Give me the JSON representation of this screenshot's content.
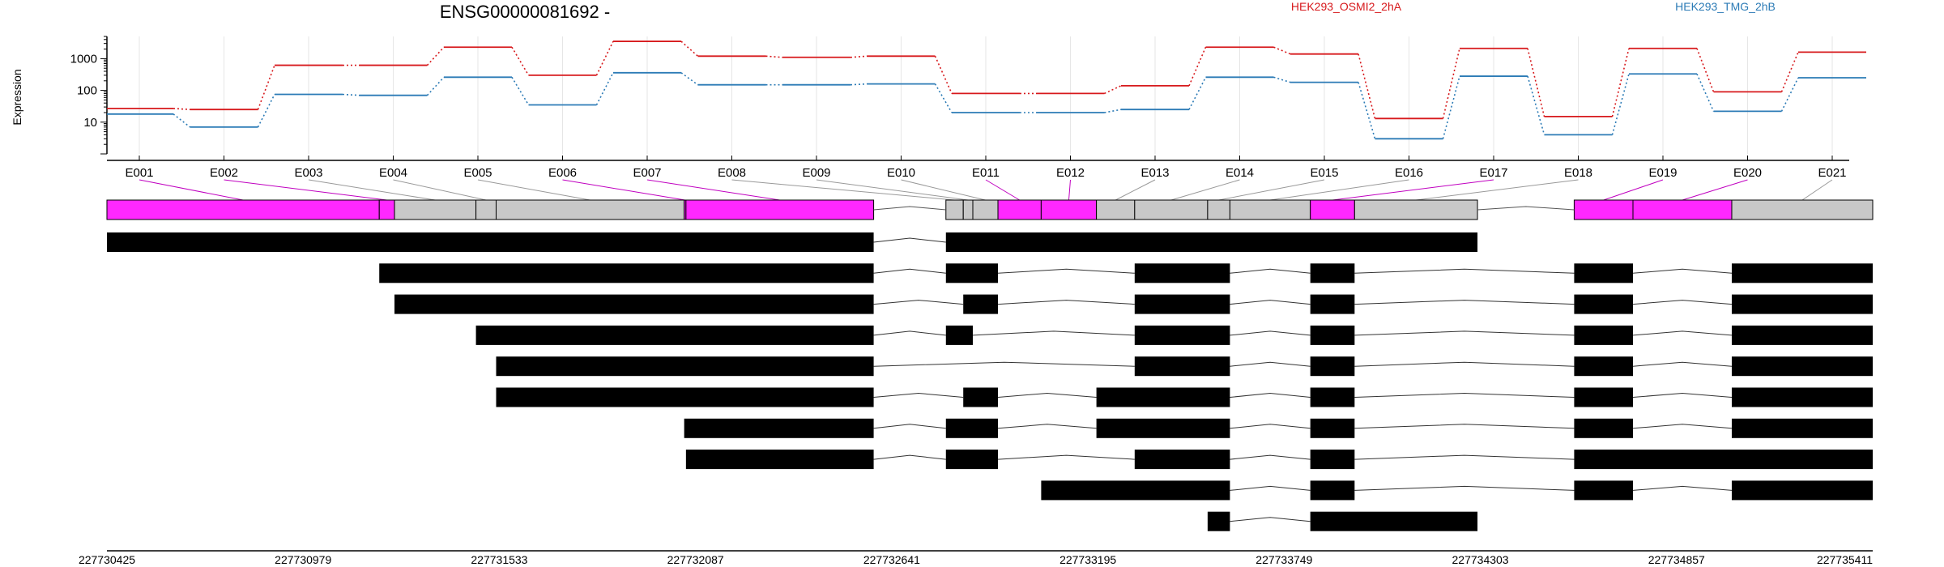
{
  "title": "ENSG00000081692 -",
  "chart_data": {
    "type": "line",
    "ylabel": "Expression",
    "yscale": "log",
    "yticks": [
      10,
      100,
      1000
    ],
    "ylim": [
      1,
      5000
    ],
    "legend": {
      "placement": "top"
    },
    "exons": [
      "E001",
      "E002",
      "E003",
      "E004",
      "E005",
      "E006",
      "E007",
      "E008",
      "E009",
      "E010",
      "E011",
      "E012",
      "E013",
      "E014",
      "E015",
      "E016",
      "E017",
      "E018",
      "E019",
      "E020",
      "E021"
    ],
    "series": [
      {
        "name": "HEK293_OSMI2_2hA",
        "color": "#d7191c",
        "values": [
          27,
          25,
          620,
          620,
          2300,
          300,
          3500,
          1200,
          1100,
          1200,
          80,
          80,
          140,
          2300,
          1400,
          13,
          2100,
          15,
          2100,
          90,
          1600
        ]
      },
      {
        "name": "HEK293_TMG_2hB",
        "color": "#2c7bb6",
        "values": [
          18,
          7,
          75,
          70,
          260,
          35,
          360,
          150,
          150,
          160,
          20,
          20,
          25,
          260,
          180,
          3,
          280,
          4,
          330,
          22,
          250
        ]
      }
    ],
    "genome_ticks": [
      "227730425",
      "227730979",
      "227731533",
      "227732087",
      "227732641",
      "227733195",
      "227733749",
      "227734303",
      "227734857",
      "227735411"
    ],
    "genome_range": [
      227730425,
      227735411
    ],
    "exon_model": [
      {
        "id": "E001",
        "start": 227730425,
        "end": 227731194,
        "differential": true
      },
      {
        "id": "E002",
        "start": 227731194,
        "end": 227731237,
        "differential": true
      },
      {
        "id": "E003",
        "start": 227731237,
        "end": 227731467,
        "differential": false
      },
      {
        "id": "E004",
        "start": 227731467,
        "end": 227731524,
        "differential": false
      },
      {
        "id": "E005",
        "start": 227731524,
        "end": 227732055,
        "differential": false
      },
      {
        "id": "E006",
        "start": 227732055,
        "end": 227732060,
        "differential": true
      },
      {
        "id": "E007",
        "start": 227732060,
        "end": 227732590,
        "differential": true
      },
      {
        "id": "E008",
        "start": 227732794,
        "end": 227732843,
        "differential": false
      },
      {
        "id": "E009",
        "start": 227732843,
        "end": 227732870,
        "differential": false
      },
      {
        "id": "E010",
        "start": 227732870,
        "end": 227732941,
        "differential": false
      },
      {
        "id": "E011",
        "start": 227732941,
        "end": 227733063,
        "differential": true
      },
      {
        "id": "E012",
        "start": 227733063,
        "end": 227733219,
        "differential": true
      },
      {
        "id": "E013",
        "start": 227733219,
        "end": 227733327,
        "differential": false
      },
      {
        "id": "E014",
        "start": 227733327,
        "end": 227733533,
        "differential": false
      },
      {
        "id": "E015",
        "start": 227733533,
        "end": 227733596,
        "differential": false
      },
      {
        "id": "E016",
        "start": 227733596,
        "end": 227733823,
        "differential": false
      },
      {
        "id": "E017",
        "start": 227733823,
        "end": 227733948,
        "differential": true
      },
      {
        "id": "E018",
        "start": 227733948,
        "end": 227734295,
        "differential": false
      },
      {
        "id": "E019",
        "start": 227734568,
        "end": 227734734,
        "differential": true
      },
      {
        "id": "E020",
        "start": 227734734,
        "end": 227735013,
        "differential": true
      },
      {
        "id": "E021",
        "start": 227735013,
        "end": 227735411,
        "differential": false
      }
    ],
    "transcripts": [
      [
        [
          227730425,
          227732590
        ],
        [
          227732794,
          227734295
        ]
      ],
      [
        [
          227731194,
          227732590
        ],
        [
          227732794,
          227732941
        ],
        [
          227733327,
          227733596
        ],
        [
          227733823,
          227733948
        ],
        [
          227734568,
          227734734
        ],
        [
          227735013,
          227735411
        ]
      ],
      [
        [
          227731237,
          227732590
        ],
        [
          227732843,
          227732941
        ],
        [
          227733327,
          227733596
        ],
        [
          227733823,
          227733948
        ],
        [
          227734568,
          227734734
        ],
        [
          227735013,
          227735411
        ]
      ],
      [
        [
          227731467,
          227732590
        ],
        [
          227732794,
          227732870
        ],
        [
          227733327,
          227733596
        ],
        [
          227733823,
          227733948
        ],
        [
          227734568,
          227734734
        ],
        [
          227735013,
          227735411
        ]
      ],
      [
        [
          227731524,
          227732590
        ],
        [
          227733327,
          227733596
        ],
        [
          227733823,
          227733948
        ],
        [
          227734568,
          227734734
        ],
        [
          227735013,
          227735411
        ]
      ],
      [
        [
          227731524,
          227732590
        ],
        [
          227732843,
          227732941
        ],
        [
          227733219,
          227733596
        ],
        [
          227733823,
          227733948
        ],
        [
          227734568,
          227734734
        ],
        [
          227735013,
          227735411
        ]
      ],
      [
        [
          227732055,
          227732590
        ],
        [
          227732794,
          227732941
        ],
        [
          227733219,
          227733596
        ],
        [
          227733823,
          227733948
        ],
        [
          227734568,
          227734734
        ],
        [
          227735013,
          227735411
        ]
      ],
      [
        [
          227732060,
          227732590
        ],
        [
          227732794,
          227732941
        ],
        [
          227733327,
          227733596
        ],
        [
          227733823,
          227733948
        ],
        [
          227734568,
          227735411
        ]
      ],
      [
        [
          227733063,
          227733596
        ],
        [
          227733823,
          227733948
        ],
        [
          227734568,
          227734734
        ],
        [
          227735013,
          227735411
        ]
      ],
      [
        [
          227733533,
          227733596
        ],
        [
          227733823,
          227734295
        ]
      ]
    ]
  }
}
